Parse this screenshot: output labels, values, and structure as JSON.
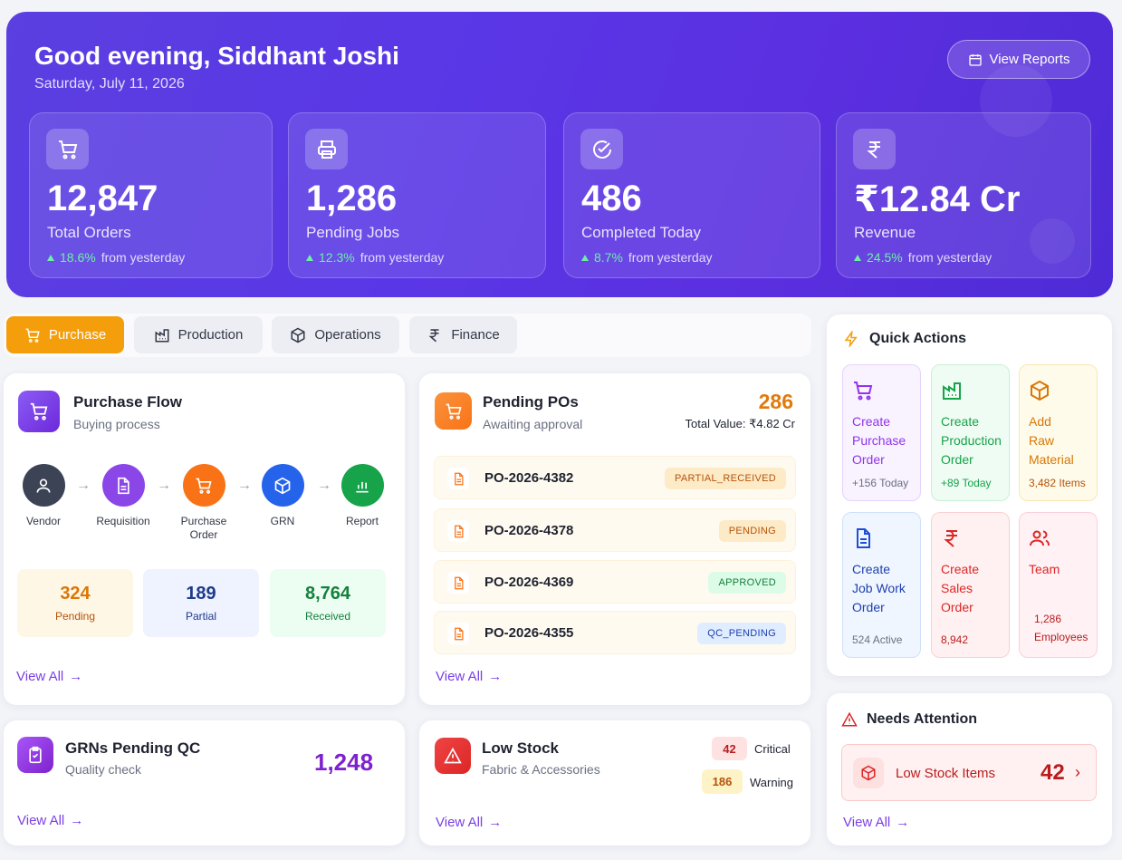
{
  "hero": {
    "greeting": "Good evening, Siddhant Joshi",
    "date": "Saturday, July 11, 2026",
    "view_reports": "View Reports",
    "stats": [
      {
        "icon": "cart-icon",
        "value": "12,847",
        "label": "Total Orders",
        "pct": "18.6%",
        "suffix": "from yesterday"
      },
      {
        "icon": "printer-icon",
        "value": "1,286",
        "label": "Pending Jobs",
        "pct": "12.3%",
        "suffix": "from yesterday"
      },
      {
        "icon": "check-circle-icon",
        "value": "486",
        "label": "Completed Today",
        "pct": "8.7%",
        "suffix": "from yesterday"
      },
      {
        "icon": "rupee-icon",
        "value": "₹12.84 Cr",
        "label": "Revenue",
        "pct": "24.5%",
        "suffix": "from yesterday"
      }
    ]
  },
  "tabs": [
    {
      "label": "Purchase",
      "icon": "cart-icon",
      "active": true
    },
    {
      "label": "Production",
      "icon": "factory-icon"
    },
    {
      "label": "Operations",
      "icon": "box-icon"
    },
    {
      "label": "Finance",
      "icon": "rupee-icon"
    }
  ],
  "purchase_flow": {
    "title": "Purchase Flow",
    "subtitle": "Buying process",
    "steps": [
      "Vendor",
      "Requisition",
      "Purchase Order",
      "GRN",
      "Report"
    ],
    "summary": [
      {
        "value": "324",
        "label": "Pending"
      },
      {
        "value": "189",
        "label": "Partial"
      },
      {
        "value": "8,764",
        "label": "Received"
      }
    ],
    "view_all": "View All"
  },
  "pending_pos": {
    "title": "Pending POs",
    "subtitle": "Awaiting approval",
    "count": "286",
    "total_value": "Total Value: ₹4.82 Cr",
    "rows": [
      {
        "id": "PO-2026-4382",
        "status": "PARTIAL_RECEIVED"
      },
      {
        "id": "PO-2026-4378",
        "status": "PENDING"
      },
      {
        "id": "PO-2026-4369",
        "status": "APPROVED"
      },
      {
        "id": "PO-2026-4355",
        "status": "QC_PENDING"
      }
    ],
    "view_all": "View All"
  },
  "grns": {
    "title": "GRNs Pending QC",
    "subtitle": "Quality check",
    "count": "1,248",
    "view_all": "View All"
  },
  "low_stock": {
    "title": "Low Stock",
    "subtitle": "Fabric & Accessories",
    "critical_count": "42",
    "critical_label": "Critical",
    "warning_count": "186",
    "warning_label": "Warning",
    "view_all": "View All"
  },
  "quick_actions": {
    "title": "Quick Actions",
    "items": [
      {
        "label": "Create Purchase Order",
        "sub": "+156 Today",
        "icon": "cart-icon"
      },
      {
        "label": "Create Production Order",
        "sub": "+89 Today",
        "icon": "factory-icon"
      },
      {
        "label": "Add Raw Material",
        "sub": "3,482 Items",
        "icon": "box-icon"
      },
      {
        "label": "Create Job Work Order",
        "sub": "524 Active",
        "icon": "document-icon"
      },
      {
        "label": "Create Sales Order",
        "sub": "8,942",
        "icon": "rupee-icon"
      },
      {
        "label": "Team",
        "sub": "1,286 Employees",
        "icon": "users-icon"
      }
    ]
  },
  "attention": {
    "title": "Needs Attention",
    "item_label": "Low Stock Items",
    "item_count": "42",
    "view_all": "View All"
  }
}
